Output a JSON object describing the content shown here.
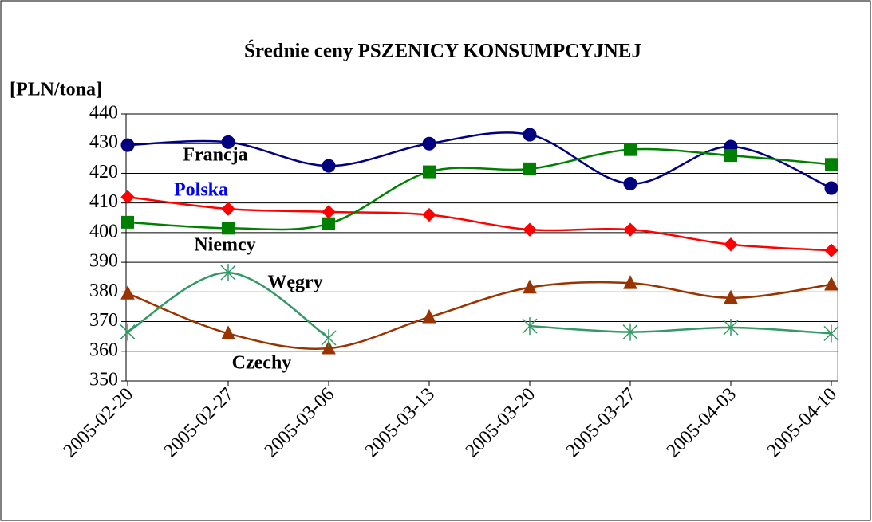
{
  "chart_data": {
    "type": "line",
    "title": "Średnie ceny PSZENICY KONSUMPCYJNEJ",
    "y_label": "[PLN/tona]",
    "categories": [
      "2005-02-20",
      "2005-02-27",
      "2005-03-06",
      "2005-03-13",
      "2005-03-20",
      "2005-03-27",
      "2005-04-03",
      "2005-04-10"
    ],
    "series": [
      {
        "color": "#000080",
        "marker": "circle",
        "values": [
          429.5,
          430.5,
          422.5,
          430,
          433,
          416.5,
          429,
          415
        ]
      },
      {
        "color": "#ff0000",
        "marker": "diamond",
        "values": [
          412,
          408,
          407,
          406,
          401,
          401,
          396,
          394
        ]
      },
      {
        "color": "#008000",
        "marker": "square",
        "values": [
          403.5,
          401.5,
          403,
          420.5,
          421.5,
          428,
          426,
          423
        ]
      },
      {
        "color": "#993300",
        "marker": "triangle",
        "values": [
          379.5,
          366,
          361,
          371.5,
          381.5,
          383,
          378,
          382.5
        ]
      },
      {
        "color": "#339966",
        "marker": "asterisk",
        "values": [
          366.5,
          386.5,
          364.5,
          null,
          368.5,
          366.5,
          368,
          366
        ]
      }
    ],
    "annotations": [
      {
        "text": "Francja",
        "color": "#000000"
      },
      {
        "text": "Polska",
        "color": "#0000ff"
      },
      {
        "text": "Niemcy",
        "color": "#000000"
      },
      {
        "text": "Węgry",
        "color": "#000000"
      },
      {
        "text": "Czechy",
        "color": "#000000"
      }
    ],
    "ylim": [
      350,
      440
    ],
    "yticks": [
      350,
      360,
      370,
      380,
      390,
      400,
      410,
      420,
      430,
      440
    ],
    "grid": true
  }
}
